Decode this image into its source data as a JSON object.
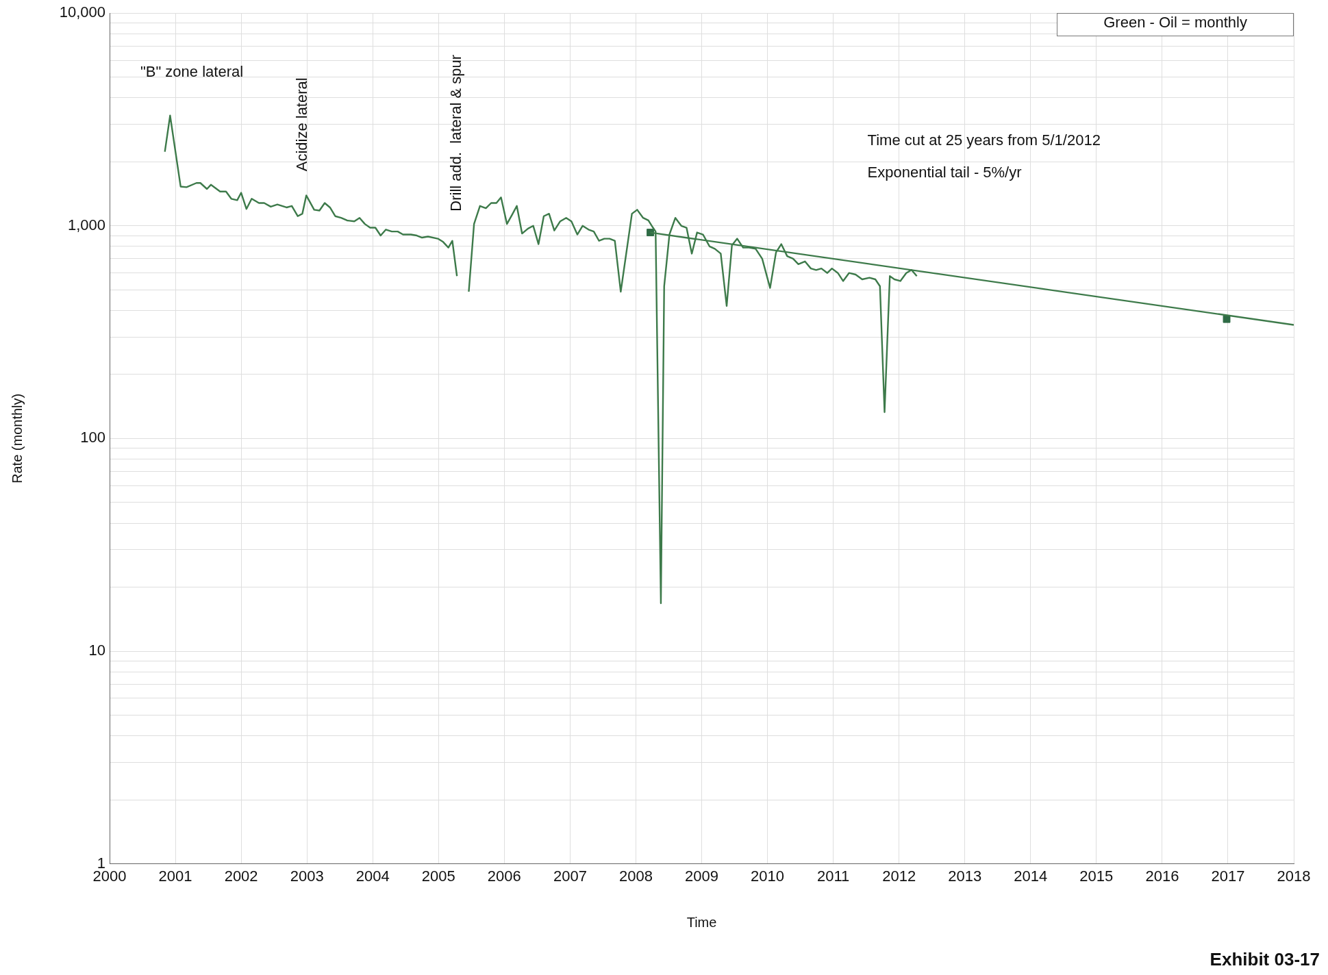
{
  "chart_data": {
    "type": "line",
    "xlabel": "Time",
    "ylabel": "Rate (monthly)",
    "log": "y",
    "grid": true,
    "legend": false,
    "line_style": "solid",
    "xlim": [
      2000,
      2018
    ],
    "xticks": [
      2000,
      2001,
      2002,
      2003,
      2004,
      2005,
      2006,
      2007,
      2008,
      2009,
      2010,
      2011,
      2012,
      2013,
      2014,
      2015,
      2016,
      2017,
      2018
    ],
    "ylim": [
      1,
      10000
    ],
    "yticks": [
      1,
      {
        "value": 2,
        "label": null
      },
      {
        "value": 3,
        "label": null
      },
      {
        "value": 4,
        "label": null
      },
      {
        "value": 5,
        "label": null
      },
      {
        "value": 6,
        "label": null
      },
      {
        "value": 7,
        "label": null
      },
      {
        "value": 8,
        "label": null
      },
      {
        "value": 9,
        "label": null
      },
      10,
      {
        "value": 20,
        "label": null
      },
      {
        "value": 30,
        "label": null
      },
      {
        "value": 40,
        "label": null
      },
      {
        "value": 50,
        "label": null
      },
      {
        "value": 60,
        "label": null
      },
      {
        "value": 70,
        "label": null
      },
      {
        "value": 80,
        "label": null
      },
      {
        "value": 90,
        "label": null
      },
      100,
      {
        "value": 200,
        "label": null
      },
      {
        "value": 300,
        "label": null
      },
      {
        "value": 400,
        "label": null
      },
      {
        "value": 500,
        "label": null
      },
      {
        "value": 600,
        "label": null
      },
      {
        "value": 700,
        "label": null
      },
      {
        "value": 800,
        "label": null
      },
      {
        "value": 900,
        "label": null
      },
      {
        "value": 1000,
        "label": "1,000"
      },
      {
        "value": 2000,
        "label": null
      },
      {
        "value": 3000,
        "label": null
      },
      {
        "value": 4000,
        "label": null
      },
      {
        "value": 5000,
        "label": null
      },
      {
        "value": 6000,
        "label": null
      },
      {
        "value": 7000,
        "label": null
      },
      {
        "value": 8000,
        "label": null
      },
      {
        "value": 9000,
        "label": null
      },
      {
        "value": 10000,
        "label": "10,000"
      }
    ],
    "series": [
      {
        "type": "line",
        "marker": "none",
        "color": "#3d7a4a",
        "x": [
          2000.84,
          2000.92,
          2001.08,
          2001.17,
          2001.32,
          2001.38,
          2001.48,
          2001.54,
          2001.68,
          2001.77,
          2001.85,
          2001.94,
          2002.0,
          2002.08,
          2002.16,
          2002.27,
          2002.35,
          2002.45,
          2002.55,
          2002.69,
          2002.77,
          2002.86,
          2002.93,
          2002.99,
          2003.11,
          2003.19,
          2003.27,
          2003.35,
          2003.43,
          2003.52,
          2003.61,
          2003.72,
          2003.8,
          2003.88,
          2003.96,
          2004.04,
          2004.12,
          2004.2,
          2004.29,
          2004.38,
          2004.46,
          2004.58,
          2004.67,
          2004.75,
          2004.84,
          2004.99,
          2005.07,
          2005.15,
          2005.21,
          2005.28,
          2005.37,
          2005.46,
          2005.54,
          2005.63,
          2005.72,
          2005.8,
          2005.88,
          2005.95,
          2006.04,
          2006.12,
          2006.19,
          2006.27,
          2006.36,
          2006.44,
          2006.52,
          2006.6,
          2006.68,
          2006.76,
          2006.85,
          2006.94,
          2007.02,
          2007.11,
          2007.19,
          2007.28,
          2007.36,
          2007.44,
          2007.52,
          2007.6,
          2007.68,
          2007.77,
          2007.94,
          2008.02,
          2008.11,
          2008.19,
          2008.26,
          2008.3,
          2008.38,
          2008.43,
          2008.51,
          2008.6,
          2008.69,
          2008.77,
          2008.85,
          2008.93,
          2009.02,
          2009.12,
          2009.2,
          2009.29,
          2009.38,
          2009.46,
          2009.54,
          2009.63,
          2009.72,
          2009.82,
          2009.92,
          2010.04,
          2010.13,
          2010.21,
          2010.3,
          2010.39,
          2010.47,
          2010.57,
          2010.66,
          2010.74,
          2010.82,
          2010.91,
          2010.98,
          2011.07,
          2011.15,
          2011.24,
          2011.34,
          2011.44,
          2011.55,
          2011.64,
          2011.71,
          2011.78,
          2011.86,
          2011.93,
          2012.02,
          2012.11,
          2012.19,
          2012.27
        ],
        "values": [
          2230,
          3300,
          1530,
          1520,
          1590,
          1590,
          1490,
          1560,
          1450,
          1450,
          1340,
          1320,
          1430,
          1200,
          1340,
          1280,
          1280,
          1230,
          1260,
          1220,
          1240,
          1110,
          1140,
          1390,
          1190,
          1180,
          1280,
          1220,
          1110,
          1090,
          1060,
          1050,
          1090,
          1020,
          980,
          980,
          900,
          960,
          940,
          940,
          910,
          910,
          900,
          880,
          890,
          870,
          840,
          790,
          850,
          580,
          null,
          490,
          1020,
          1240,
          1210,
          1280,
          1280,
          1360,
          1020,
          1130,
          1240,
          920,
          970,
          1000,
          820,
          1110,
          1140,
          950,
          1050,
          1090,
          1050,
          910,
          1000,
          960,
          940,
          850,
          870,
          870,
          850,
          490,
          1140,
          1190,
          1090,
          1060,
          980,
          940,
          16.8,
          520,
          910,
          1090,
          1000,
          980,
          740,
          930,
          910,
          800,
          780,
          740,
          420,
          810,
          870,
          790,
          790,
          780,
          700,
          510,
          750,
          820,
          720,
          700,
          660,
          680,
          630,
          620,
          630,
          600,
          630,
          600,
          550,
          600,
          590,
          560,
          570,
          560,
          520,
          133,
          580,
          560,
          550,
          600,
          620,
          580
        ]
      },
      {
        "type": "line",
        "marker": "none",
        "color": "#3d7a4a",
        "x": [
          2008.22,
          2018
        ],
        "values": [
          930,
          342
        ]
      },
      {
        "type": "scatter",
        "marker": "square",
        "color": "#2e6b45",
        "x": [
          2008.22,
          2016.98
        ],
        "values": [
          930,
          364
        ]
      }
    ],
    "annotations": [
      "\"B\" zone lateral",
      "Acidize lateral",
      "Drill add.  lateral & spur",
      "Time cut at 25 years from 5/1/2012",
      "Exponential tail - 5%/yr",
      "Green - Oil = monthly",
      "Exhibit 03-17"
    ]
  }
}
